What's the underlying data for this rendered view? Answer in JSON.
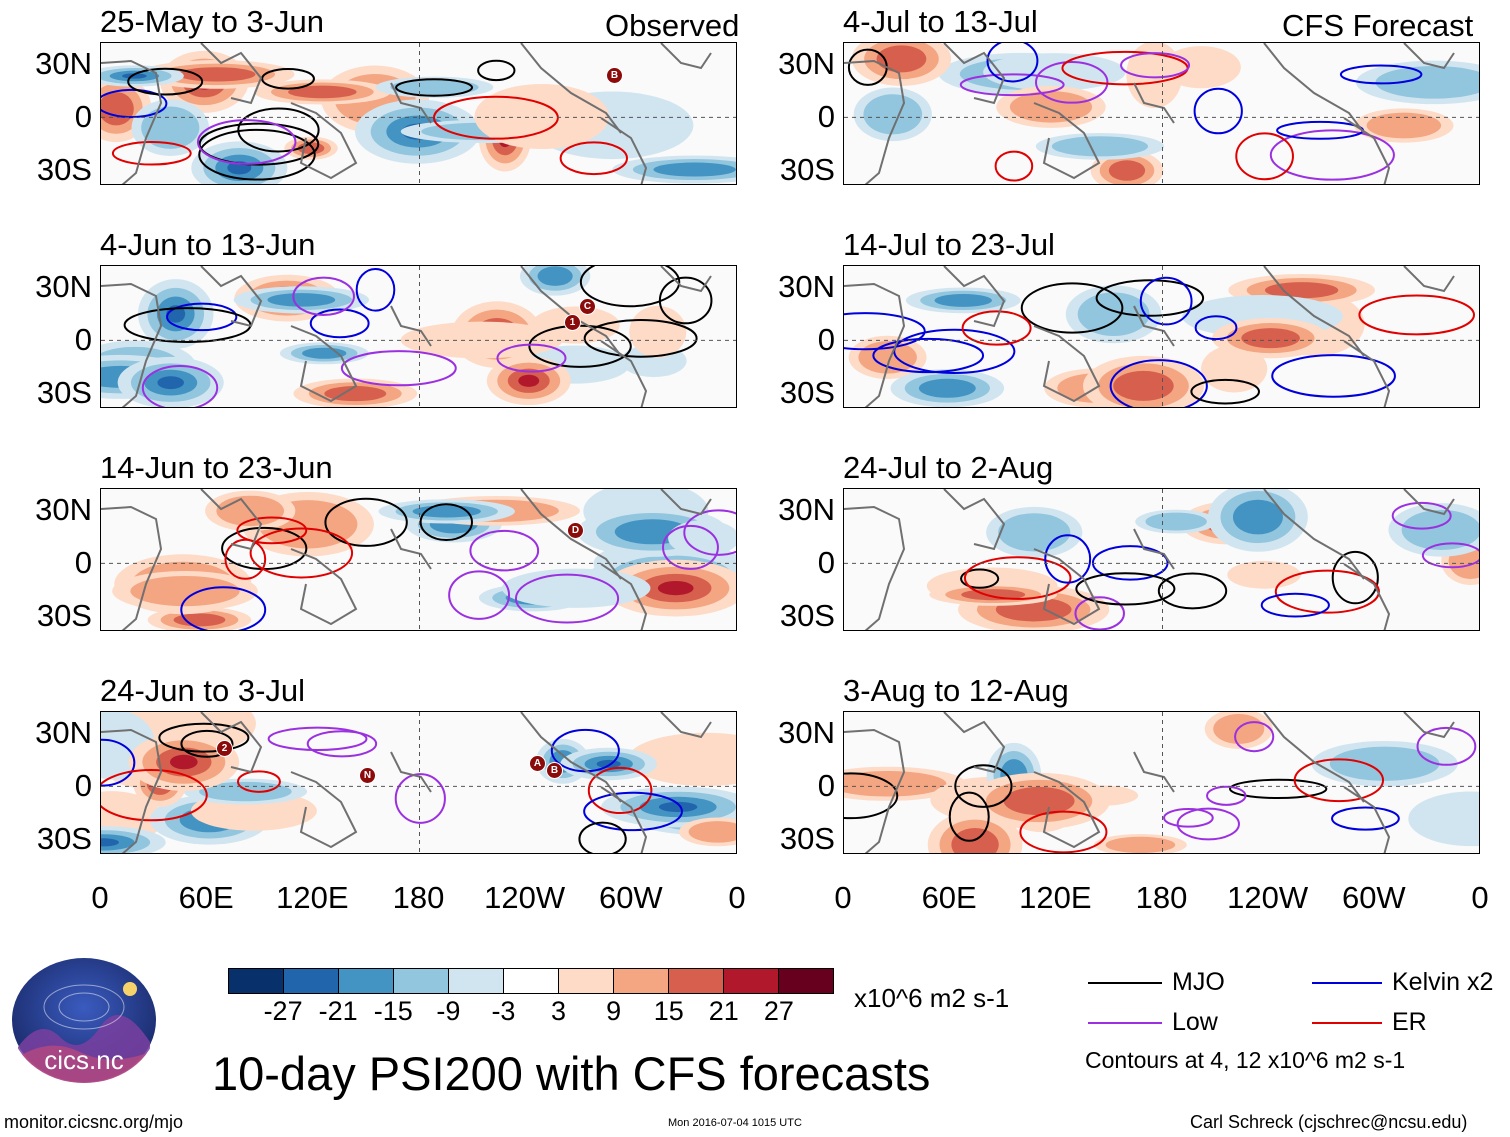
{
  "panels": [
    {
      "title": "25-May to 3-Jun",
      "tag": "Observed",
      "kind": "obs"
    },
    {
      "title": "4-Jun to 13-Jun",
      "tag": "",
      "kind": "obs"
    },
    {
      "title": "14-Jun to 23-Jun",
      "tag": "",
      "kind": "obs"
    },
    {
      "title": "24-Jun to 3-Jul",
      "tag": "",
      "kind": "obs"
    },
    {
      "title": "4-Jul to 13-Jul",
      "tag": "CFS Forecast",
      "kind": "fcst"
    },
    {
      "title": "14-Jul to 23-Jul",
      "tag": "",
      "kind": "fcst"
    },
    {
      "title": "24-Jul to 2-Aug",
      "tag": "",
      "kind": "fcst"
    },
    {
      "title": "3-Aug to 12-Aug",
      "tag": "",
      "kind": "fcst"
    }
  ],
  "lat_labels": [
    "30N",
    "0",
    "30S"
  ],
  "lon_labels": [
    "0",
    "60E",
    "120E",
    "180",
    "120W",
    "60W",
    "0"
  ],
  "colorbar": {
    "ticks": [
      "-27",
      "-21",
      "-15",
      "-9",
      "-3",
      "3",
      "9",
      "15",
      "21",
      "27"
    ],
    "colors": [
      "#08306b",
      "#2166ac",
      "#4393c3",
      "#92c5de",
      "#d1e5f0",
      "#ffffff",
      "#fddbc7",
      "#f4a582",
      "#d6604d",
      "#b2182b",
      "#67001f"
    ],
    "units": "x10^6 m2 s-1"
  },
  "title": "10-day PSI200 with CFS forecasts",
  "legend": {
    "items": [
      {
        "label": "MJO",
        "color": "#000000"
      },
      {
        "label": "Kelvin x2",
        "color": "#0000dd"
      },
      {
        "label": "Low",
        "color": "#9b30e0"
      },
      {
        "label": "ER",
        "color": "#e00000"
      }
    ],
    "note": "Contours at 4, 12 x10^6 m2 s-1"
  },
  "storm_markers": {
    "panel0": [
      "B"
    ],
    "panel1": [
      "1",
      "C"
    ],
    "panel2": [
      "D"
    ],
    "panel3": [
      "2",
      "N",
      "A",
      "B"
    ]
  },
  "logo_text": "cics.nc",
  "footer": {
    "left": "monitor.cicsnc.org/mjo",
    "center": "Mon 2016-07-04 1015 UTC",
    "right": "Carl Schreck (cjschrec@ncsu.edu)"
  }
}
